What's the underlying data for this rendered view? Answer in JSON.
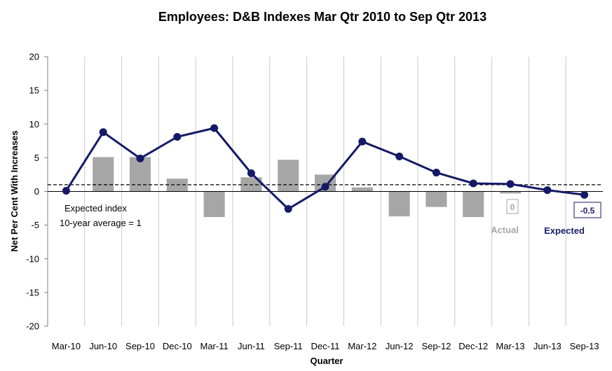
{
  "chart_data": {
    "type": "bar+line",
    "title": "Employees: D&B Indexes Mar Qtr 2010 to Sep Qtr 2013",
    "xlabel": "Quarter",
    "ylabel": "Net Per Cent With Increases",
    "ylim": [
      -20,
      20
    ],
    "yticks": [
      20,
      15,
      10,
      5,
      0,
      -5,
      -10,
      -15,
      -20
    ],
    "grid": "vertical",
    "categories": [
      "Mar-10",
      "Jun-10",
      "Sep-10",
      "Dec-10",
      "Mar-11",
      "Jun-11",
      "Sep-11",
      "Dec-11",
      "Mar-12",
      "Jun-12",
      "Sep-12",
      "Dec-12",
      "Mar-13",
      "Jun-13",
      "Sep-13"
    ],
    "series": [
      {
        "name": "Actual",
        "type": "bar",
        "color": "#a6a6a6",
        "values": [
          null,
          5.1,
          5.1,
          1.9,
          -3.8,
          2.1,
          4.7,
          2.5,
          0.6,
          -3.7,
          -2.3,
          -3.8,
          -0.3,
          null,
          null
        ]
      },
      {
        "name": "Expected",
        "type": "line",
        "color": "#141a66",
        "values": [
          0.1,
          8.8,
          4.9,
          8.1,
          9.4,
          2.7,
          -2.6,
          0.7,
          7.4,
          5.2,
          2.8,
          1.2,
          1.1,
          0.2,
          -0.5
        ]
      }
    ],
    "reference_line": {
      "value": 1,
      "style": "dashed"
    },
    "annotations": {
      "expected_index_line1": "Expected index",
      "expected_index_line2": "10-year average = 1",
      "actual_value_label": "0",
      "expected_value_label": "-0.5",
      "legend_actual": "Actual",
      "legend_expected": "Expected"
    }
  }
}
